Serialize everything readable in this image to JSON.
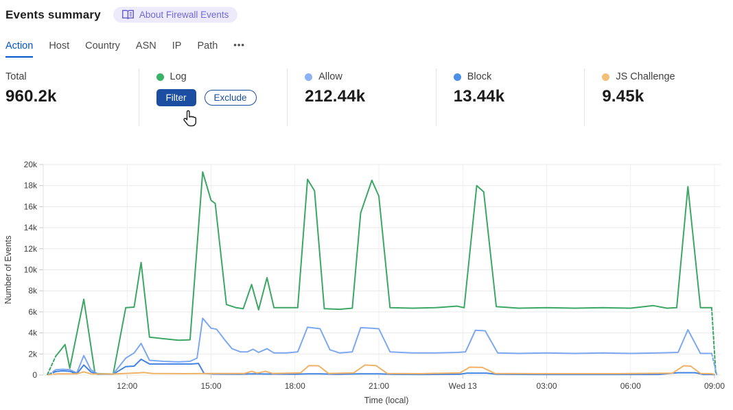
{
  "header": {
    "title": "Events summary",
    "about_badge": "About Firewall Events"
  },
  "tabs": {
    "items": [
      {
        "label": "Action",
        "active": true
      },
      {
        "label": "Host",
        "active": false
      },
      {
        "label": "Country",
        "active": false
      },
      {
        "label": "ASN",
        "active": false
      },
      {
        "label": "IP",
        "active": false
      },
      {
        "label": "Path",
        "active": false
      }
    ],
    "more": "•••"
  },
  "stats": {
    "total": {
      "label": "Total",
      "value": "960.2k"
    },
    "items": [
      {
        "label": "Log",
        "color": "#38b368",
        "filter_label": "Filter",
        "exclude_label": "Exclude"
      },
      {
        "label": "Allow",
        "color": "#8ab2f4",
        "value": "212.44k"
      },
      {
        "label": "Block",
        "color": "#4a90e8",
        "value": "13.44k"
      },
      {
        "label": "JS Challenge",
        "color": "#f2bf78",
        "value": "9.45k"
      }
    ]
  },
  "chart_data": {
    "type": "line",
    "xlabel": "Time (local)",
    "ylabel": "Number of Events",
    "x_unit": "hours since Tue 09:00 (local)",
    "y_unit": "thousands of events",
    "x_range": [
      0,
      24
    ],
    "ylim": [
      0,
      20
    ],
    "grid": true,
    "y_ticks": [
      {
        "v": 0,
        "label": "0"
      },
      {
        "v": 2,
        "label": "2k"
      },
      {
        "v": 4,
        "label": "4k"
      },
      {
        "v": 6,
        "label": "6k"
      },
      {
        "v": 8,
        "label": "8k"
      },
      {
        "v": 10,
        "label": "10k"
      },
      {
        "v": 12,
        "label": "12k"
      },
      {
        "v": 14,
        "label": "14k"
      },
      {
        "v": 16,
        "label": "16k"
      },
      {
        "v": 18,
        "label": "18k"
      },
      {
        "v": 20,
        "label": "20k"
      }
    ],
    "x_ticks": [
      {
        "t": 3,
        "label": "12:00"
      },
      {
        "t": 6,
        "label": "15:00"
      },
      {
        "t": 9,
        "label": "18:00"
      },
      {
        "t": 12,
        "label": "21:00"
      },
      {
        "t": 15,
        "label": "Wed 13"
      },
      {
        "t": 18,
        "label": "03:00"
      },
      {
        "t": 21,
        "label": "06:00"
      },
      {
        "t": 24,
        "label": "09:00"
      }
    ],
    "series": [
      {
        "name": "Log",
        "color": "#3aa763",
        "dash_start": [
          [
            0.15,
            0.05
          ],
          [
            0.45,
            1.8
          ]
        ],
        "points": [
          [
            0.45,
            1.8
          ],
          [
            0.6,
            2.3
          ],
          [
            0.78,
            2.9
          ],
          [
            0.95,
            0.65
          ],
          [
            1.45,
            7.2
          ],
          [
            1.85,
            0.15
          ],
          [
            2.5,
            0.1
          ],
          [
            2.95,
            6.4
          ],
          [
            3.25,
            6.45
          ],
          [
            3.5,
            10.7
          ],
          [
            3.8,
            3.6
          ],
          [
            4.3,
            3.45
          ],
          [
            4.85,
            3.3
          ],
          [
            5.25,
            3.35
          ],
          [
            5.7,
            19.3
          ],
          [
            6.0,
            16.6
          ],
          [
            6.15,
            16.3
          ],
          [
            6.55,
            6.7
          ],
          [
            6.9,
            6.4
          ],
          [
            7.15,
            6.3
          ],
          [
            7.45,
            8.6
          ],
          [
            7.7,
            6.2
          ],
          [
            8.0,
            9.25
          ],
          [
            8.25,
            6.4
          ],
          [
            8.7,
            6.4
          ],
          [
            9.1,
            6.4
          ],
          [
            9.45,
            18.6
          ],
          [
            9.7,
            17.5
          ],
          [
            10.05,
            6.3
          ],
          [
            10.6,
            6.25
          ],
          [
            11.05,
            6.35
          ],
          [
            11.35,
            15.4
          ],
          [
            11.75,
            18.5
          ],
          [
            12.0,
            17.0
          ],
          [
            12.4,
            6.4
          ],
          [
            13.2,
            6.35
          ],
          [
            14.0,
            6.4
          ],
          [
            14.8,
            6.55
          ],
          [
            15.05,
            6.4
          ],
          [
            15.5,
            18.0
          ],
          [
            15.75,
            17.4
          ],
          [
            16.2,
            6.5
          ],
          [
            17.0,
            6.35
          ],
          [
            18.0,
            6.4
          ],
          [
            19.0,
            6.35
          ],
          [
            20.0,
            6.4
          ],
          [
            21.0,
            6.35
          ],
          [
            21.8,
            6.6
          ],
          [
            22.3,
            6.35
          ],
          [
            22.65,
            6.4
          ],
          [
            23.05,
            17.9
          ],
          [
            23.5,
            6.4
          ],
          [
            23.9,
            6.4
          ]
        ],
        "dash_end": [
          [
            23.9,
            6.4
          ],
          [
            24.05,
            0.05
          ]
        ]
      },
      {
        "name": "Allow",
        "color": "#7ba8f0",
        "dash_start": [
          [
            0.2,
            0.05
          ],
          [
            0.45,
            0.5
          ]
        ],
        "points": [
          [
            0.45,
            0.5
          ],
          [
            0.7,
            0.55
          ],
          [
            0.95,
            0.5
          ],
          [
            1.2,
            0.2
          ],
          [
            1.45,
            1.85
          ],
          [
            1.7,
            0.5
          ],
          [
            1.95,
            0.12
          ],
          [
            2.5,
            0.1
          ],
          [
            2.95,
            1.6
          ],
          [
            3.25,
            2.1
          ],
          [
            3.5,
            3.0
          ],
          [
            3.8,
            1.4
          ],
          [
            4.3,
            1.3
          ],
          [
            4.85,
            1.25
          ],
          [
            5.25,
            1.3
          ],
          [
            5.5,
            1.6
          ],
          [
            5.7,
            5.4
          ],
          [
            6.0,
            4.45
          ],
          [
            6.2,
            4.35
          ],
          [
            6.5,
            3.3
          ],
          [
            6.75,
            2.5
          ],
          [
            7.05,
            2.2
          ],
          [
            7.3,
            2.2
          ],
          [
            7.5,
            2.45
          ],
          [
            7.7,
            2.15
          ],
          [
            8.0,
            2.5
          ],
          [
            8.25,
            2.1
          ],
          [
            8.7,
            2.1
          ],
          [
            9.1,
            2.2
          ],
          [
            9.45,
            4.55
          ],
          [
            9.9,
            4.4
          ],
          [
            10.25,
            2.4
          ],
          [
            10.6,
            2.1
          ],
          [
            11.05,
            2.2
          ],
          [
            11.35,
            4.5
          ],
          [
            11.75,
            4.45
          ],
          [
            12.0,
            4.4
          ],
          [
            12.4,
            2.2
          ],
          [
            13.2,
            2.1
          ],
          [
            14.0,
            2.1
          ],
          [
            14.8,
            2.15
          ],
          [
            15.1,
            2.2
          ],
          [
            15.45,
            4.25
          ],
          [
            15.8,
            4.2
          ],
          [
            16.25,
            2.1
          ],
          [
            17.0,
            2.05
          ],
          [
            18.0,
            2.1
          ],
          [
            19.0,
            2.05
          ],
          [
            20.0,
            2.1
          ],
          [
            21.0,
            2.05
          ],
          [
            22.0,
            2.1
          ],
          [
            22.7,
            2.15
          ],
          [
            23.05,
            4.3
          ],
          [
            23.5,
            2.05
          ],
          [
            23.9,
            2.05
          ]
        ],
        "dash_end": [
          [
            23.9,
            2.05
          ],
          [
            24.08,
            0.05
          ]
        ]
      },
      {
        "name": "Block",
        "color": "#4183e2",
        "dash_start": [
          [
            0.2,
            0.03
          ],
          [
            0.45,
            0.33
          ]
        ],
        "points": [
          [
            0.45,
            0.33
          ],
          [
            0.7,
            0.4
          ],
          [
            0.95,
            0.35
          ],
          [
            1.2,
            0.12
          ],
          [
            1.45,
            0.95
          ],
          [
            1.7,
            0.3
          ],
          [
            1.95,
            0.08
          ],
          [
            2.5,
            0.08
          ],
          [
            2.95,
            0.8
          ],
          [
            3.25,
            0.85
          ],
          [
            3.5,
            1.5
          ],
          [
            3.8,
            1.05
          ],
          [
            4.5,
            1.05
          ],
          [
            5.3,
            1.05
          ],
          [
            5.55,
            1.1
          ],
          [
            5.75,
            0.15
          ],
          [
            6.1,
            0.1
          ],
          [
            7.0,
            0.08
          ],
          [
            7.5,
            0.12
          ],
          [
            8.0,
            0.1
          ],
          [
            9.0,
            0.08
          ],
          [
            9.45,
            0.12
          ],
          [
            9.9,
            0.12
          ],
          [
            10.5,
            0.07
          ],
          [
            11.3,
            0.12
          ],
          [
            12.0,
            0.12
          ],
          [
            12.5,
            0.07
          ],
          [
            13.5,
            0.06
          ],
          [
            14.9,
            0.08
          ],
          [
            15.15,
            0.18
          ],
          [
            15.85,
            0.18
          ],
          [
            16.2,
            0.08
          ],
          [
            17.5,
            0.06
          ],
          [
            19.0,
            0.06
          ],
          [
            20.5,
            0.06
          ],
          [
            22.0,
            0.06
          ],
          [
            22.7,
            0.22
          ],
          [
            23.3,
            0.22
          ],
          [
            23.6,
            0.06
          ],
          [
            23.9,
            0.06
          ]
        ],
        "dash_end": [
          [
            23.9,
            0.06
          ],
          [
            24.05,
            0.03
          ]
        ]
      },
      {
        "name": "JS Challenge",
        "color": "#f0b266",
        "dash_start": [
          [
            0.2,
            0.03
          ],
          [
            0.5,
            0.12
          ]
        ],
        "points": [
          [
            0.5,
            0.12
          ],
          [
            1.2,
            0.12
          ],
          [
            1.45,
            0.3
          ],
          [
            1.7,
            0.12
          ],
          [
            2.5,
            0.1
          ],
          [
            3.4,
            0.2
          ],
          [
            3.6,
            0.25
          ],
          [
            3.9,
            0.15
          ],
          [
            5.0,
            0.13
          ],
          [
            6.0,
            0.15
          ],
          [
            7.2,
            0.15
          ],
          [
            7.45,
            0.35
          ],
          [
            7.65,
            0.18
          ],
          [
            7.95,
            0.35
          ],
          [
            8.2,
            0.15
          ],
          [
            9.2,
            0.2
          ],
          [
            9.5,
            0.9
          ],
          [
            9.85,
            0.88
          ],
          [
            10.2,
            0.15
          ],
          [
            11.1,
            0.2
          ],
          [
            11.5,
            0.95
          ],
          [
            11.9,
            0.9
          ],
          [
            12.3,
            0.15
          ],
          [
            13.5,
            0.13
          ],
          [
            14.9,
            0.2
          ],
          [
            15.25,
            0.75
          ],
          [
            15.7,
            0.72
          ],
          [
            16.15,
            0.15
          ],
          [
            17.5,
            0.13
          ],
          [
            19.0,
            0.13
          ],
          [
            20.5,
            0.13
          ],
          [
            22.5,
            0.18
          ],
          [
            22.9,
            0.88
          ],
          [
            23.15,
            0.85
          ],
          [
            23.5,
            0.15
          ],
          [
            23.9,
            0.13
          ]
        ],
        "dash_end": [
          [
            23.9,
            0.13
          ],
          [
            24.05,
            0.03
          ]
        ]
      }
    ]
  }
}
